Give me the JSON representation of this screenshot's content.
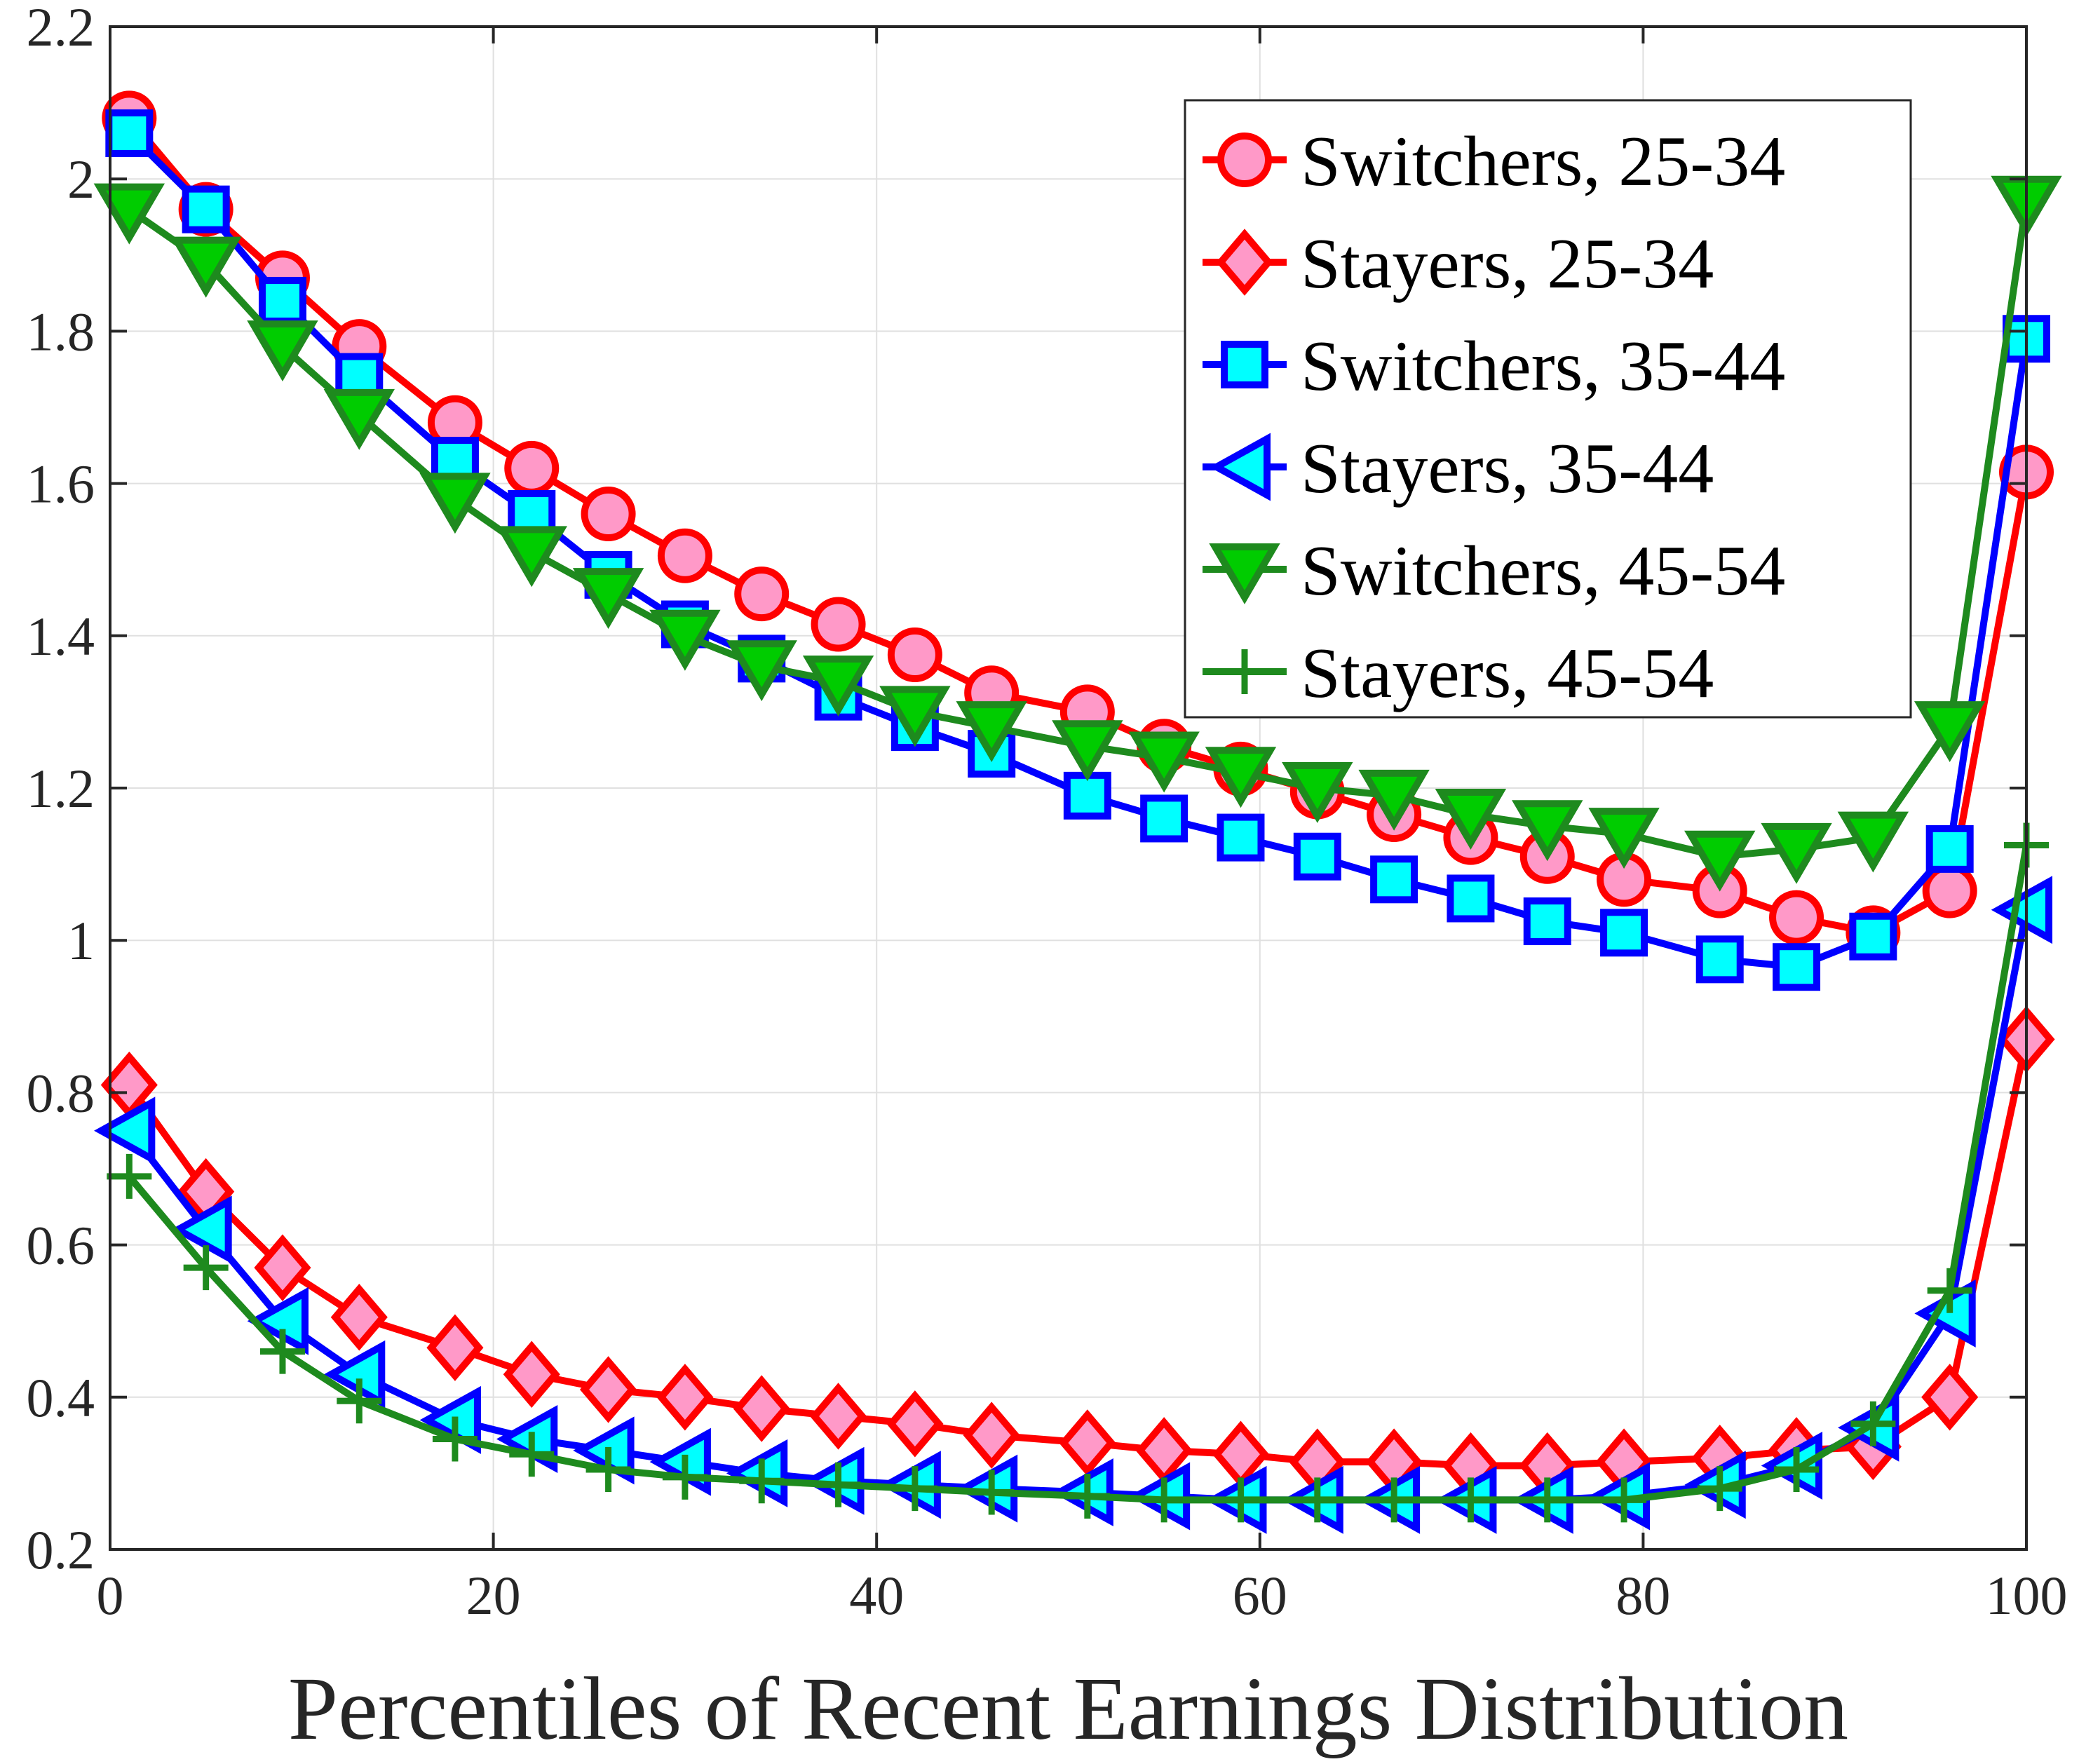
{
  "chart_data": {
    "type": "line",
    "title": "",
    "xlabel": "Percentiles of Recent Earnings Distribution",
    "ylabel": "",
    "xlim": [
      0,
      100
    ],
    "ylim": [
      0.2,
      2.2
    ],
    "xticks": [
      0,
      20,
      40,
      60,
      80,
      100
    ],
    "xtick_labels": [
      "0",
      "20",
      "40",
      "60",
      "80",
      "100"
    ],
    "yticks": [
      0.2,
      0.4,
      0.6,
      0.8,
      1,
      1.2,
      1.4,
      1.6,
      1.8,
      2,
      2.2
    ],
    "ytick_labels": [
      "0.2",
      "0.4",
      "0.6",
      "0.8",
      "1",
      "1.2",
      "1.4",
      "1.6",
      "1.8",
      "2",
      "2.2"
    ],
    "grid": true,
    "legend_position": "top-right",
    "x": [
      1,
      5,
      9,
      13,
      18,
      22,
      26,
      30,
      34,
      38,
      42,
      46,
      51,
      55,
      59,
      63,
      67,
      71,
      75,
      79,
      84,
      88,
      92,
      96,
      100
    ],
    "series": [
      {
        "name": "Switchers, 25-34",
        "color": "#ff0000",
        "fill": "#ff99c8",
        "marker": "circle",
        "values": [
          2.08,
          1.96,
          1.87,
          1.78,
          1.68,
          1.62,
          1.56,
          1.505,
          1.455,
          1.415,
          1.375,
          1.325,
          1.3,
          1.255,
          1.225,
          1.195,
          1.165,
          1.135,
          1.11,
          1.08,
          1.065,
          1.03,
          1.01,
          1.065,
          1.615
        ]
      },
      {
        "name": "Stayers, 25-34",
        "color": "#ff0000",
        "fill": "#ff99c8",
        "marker": "diamond",
        "values": [
          0.81,
          0.67,
          0.57,
          0.505,
          0.465,
          0.43,
          0.41,
          0.4,
          0.385,
          0.375,
          0.365,
          0.35,
          0.34,
          0.33,
          0.325,
          0.315,
          0.315,
          0.31,
          0.31,
          0.315,
          0.32,
          0.33,
          0.335,
          0.4,
          0.87
        ]
      },
      {
        "name": "Switchers, 35-44",
        "color": "#0000ff",
        "fill": "#00ffff",
        "marker": "square",
        "values": [
          2.06,
          1.96,
          1.84,
          1.74,
          1.63,
          1.56,
          1.48,
          1.415,
          1.37,
          1.32,
          1.28,
          1.245,
          1.19,
          1.16,
          1.135,
          1.11,
          1.08,
          1.055,
          1.025,
          1.01,
          0.975,
          0.965,
          1.005,
          1.12,
          1.79
        ]
      },
      {
        "name": "Stayers, 35-44",
        "color": "#0000ff",
        "fill": "#00ffff",
        "marker": "triangle-left",
        "values": [
          0.75,
          0.62,
          0.5,
          0.43,
          0.37,
          0.345,
          0.33,
          0.315,
          0.3,
          0.29,
          0.285,
          0.28,
          0.275,
          0.27,
          0.265,
          0.265,
          0.265,
          0.265,
          0.265,
          0.27,
          0.285,
          0.31,
          0.36,
          0.51,
          1.04
        ]
      },
      {
        "name": "Switchers, 45-54",
        "color": "#1e8a1e",
        "fill": "#00cc00",
        "marker": "triangle-down",
        "values": [
          1.96,
          1.89,
          1.78,
          1.69,
          1.58,
          1.51,
          1.455,
          1.4,
          1.36,
          1.34,
          1.3,
          1.28,
          1.255,
          1.24,
          1.22,
          1.2,
          1.19,
          1.165,
          1.15,
          1.14,
          1.11,
          1.12,
          1.135,
          1.28,
          1.97
        ]
      },
      {
        "name": "Stayers, 45-54",
        "color": "#1e8a1e",
        "fill": "#1e8a1e",
        "marker": "plus",
        "values": [
          0.69,
          0.57,
          0.46,
          0.395,
          0.345,
          0.325,
          0.305,
          0.295,
          0.29,
          0.285,
          0.28,
          0.275,
          0.27,
          0.265,
          0.265,
          0.265,
          0.265,
          0.265,
          0.265,
          0.265,
          0.28,
          0.305,
          0.365,
          0.54,
          1.125
        ]
      }
    ]
  }
}
